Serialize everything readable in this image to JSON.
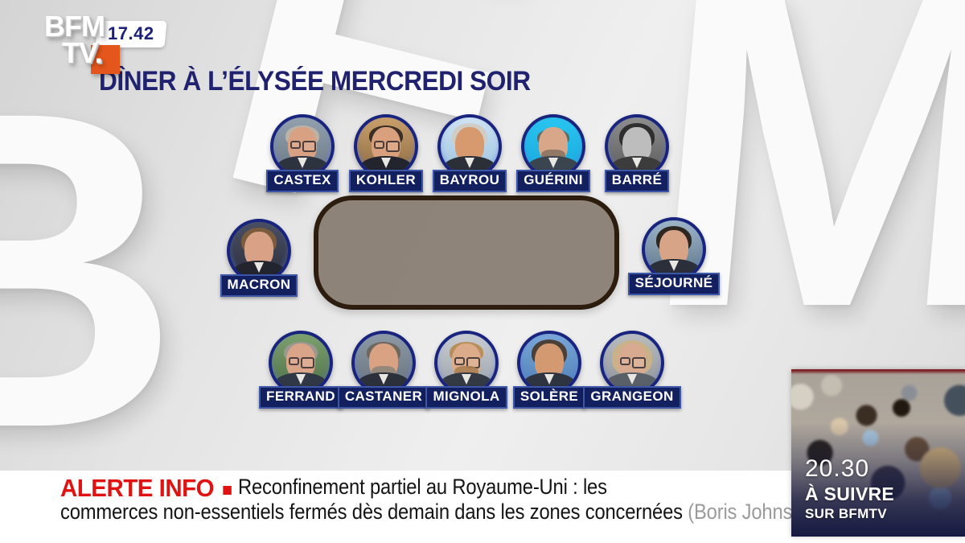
{
  "channel": {
    "logo_line1": "BFM",
    "logo_line2": "TV.",
    "time": "17.42"
  },
  "title": "DÎNER À L’ÉLYSÉE MERCREDI SOIR",
  "watermark": {
    "letters": [
      "B",
      "F",
      "M"
    ]
  },
  "people": [
    {
      "name": "CASTEX",
      "avatar": {
        "bg1": "#93a1ae",
        "bg2": "#6b7886",
        "skin": "#d9a183",
        "hair": "#b9b3a8",
        "suit": "#2e3340",
        "glasses": true,
        "beard": null,
        "hairstyle": "receded"
      }
    },
    {
      "name": "KOHLER",
      "avatar": {
        "bg1": "#caa06a",
        "bg2": "#8a6a42",
        "skin": "#d8a07c",
        "hair": "#3a2f26",
        "suit": "#23252e",
        "glasses": true,
        "beard": null,
        "hairstyle": "receded"
      }
    },
    {
      "name": "BAYROU",
      "avatar": {
        "bg1": "#cfe3f2",
        "bg2": "#9cc2e0",
        "skin": "#d69a6e",
        "hair": "#cfcdc6",
        "suit": "#2b3038",
        "glasses": false,
        "beard": null,
        "hairstyle": "full"
      }
    },
    {
      "name": "GUÉRINI",
      "avatar": {
        "bg1": "#29c5f0",
        "bg2": "#18a8dd",
        "skin": "#d8a78a",
        "hair": "#6b5a4c",
        "suit": "#3a4550",
        "glasses": false,
        "beard": "#8a7462",
        "hairstyle": "bald"
      }
    },
    {
      "name": "BARRÉ",
      "avatar": {
        "bg1": "#8e8e8e",
        "bg2": "#5c5c5c",
        "skin": "#bdbdbd",
        "hair": "#2f2f2f",
        "suit": "#3c3c3c",
        "glasses": false,
        "beard": null,
        "hairstyle": "full"
      }
    },
    {
      "name": "MACRON",
      "avatar": {
        "bg1": "#4a4f62",
        "bg2": "#2c3040",
        "skin": "#d9a287",
        "hair": "#7a5b3e",
        "suit": "#22242e",
        "glasses": false,
        "beard": null,
        "hairstyle": "full"
      }
    },
    {
      "name": "SÉJOURNÉ",
      "avatar": {
        "bg1": "#9fb6c9",
        "bg2": "#5d7588",
        "skin": "#d8a488",
        "hair": "#2e2620",
        "suit": "#2b2f3a",
        "glasses": false,
        "beard": null,
        "hairstyle": "full"
      }
    },
    {
      "name": "FERRAND",
      "avatar": {
        "bg1": "#7da06e",
        "bg2": "#4e7048",
        "skin": "#d9a488",
        "hair": "#9a9890",
        "suit": "#313845",
        "glasses": true,
        "beard": null,
        "hairstyle": "receded"
      }
    },
    {
      "name": "CASTANER",
      "avatar": {
        "bg1": "#8d9aa6",
        "bg2": "#66727e",
        "skin": "#d8a283",
        "hair": "#6e675f",
        "suit": "#2c303a",
        "glasses": false,
        "beard": "#8d857a",
        "hairstyle": "receded"
      }
    },
    {
      "name": "MIGNOLA",
      "avatar": {
        "bg1": "#c9cdd2",
        "bg2": "#9aa2ab",
        "skin": "#dcab8a",
        "hair": "#b98e5a",
        "suit": "#343a44",
        "glasses": true,
        "beard": "#a97f52",
        "hairstyle": "receded"
      }
    },
    {
      "name": "SOLÈRE",
      "avatar": {
        "bg1": "#7aa7d8",
        "bg2": "#4d7fb5",
        "skin": "#d39a72",
        "hair": "#4a4038",
        "suit": "#2e3440",
        "glasses": false,
        "beard": null,
        "hairstyle": "full"
      }
    },
    {
      "name": "GRANGEON",
      "avatar": {
        "bg1": "#b9bdc0",
        "bg2": "#8f9498",
        "skin": "#d8ab90",
        "hair": "#c9b287",
        "suit": "#5a6068",
        "glasses": true,
        "beard": null,
        "hairstyle": "long"
      }
    }
  ],
  "alert": {
    "label": "ALERTE INFO",
    "line1": "Reconfinement partiel au Royaume-Uni : les",
    "line2": "commerces non-essentiels fermés dès demain dans les zones concernées",
    "attribution": "(Boris Johnson)"
  },
  "promo": {
    "time": "20.30",
    "title": "À SUIVRE",
    "subtitle": "SUR BFMTV"
  },
  "colors": {
    "accent_red": "#e11212",
    "title_navy": "#20226f",
    "label_navy": "#13205f",
    "label_border_blue": "#3e56a8",
    "ring_blue": "#18247e",
    "table_fill": "#9a9086",
    "table_border": "#2c1d0e",
    "logo_orange": "#e4561b",
    "promo_overlay_navy": "#10143e"
  }
}
